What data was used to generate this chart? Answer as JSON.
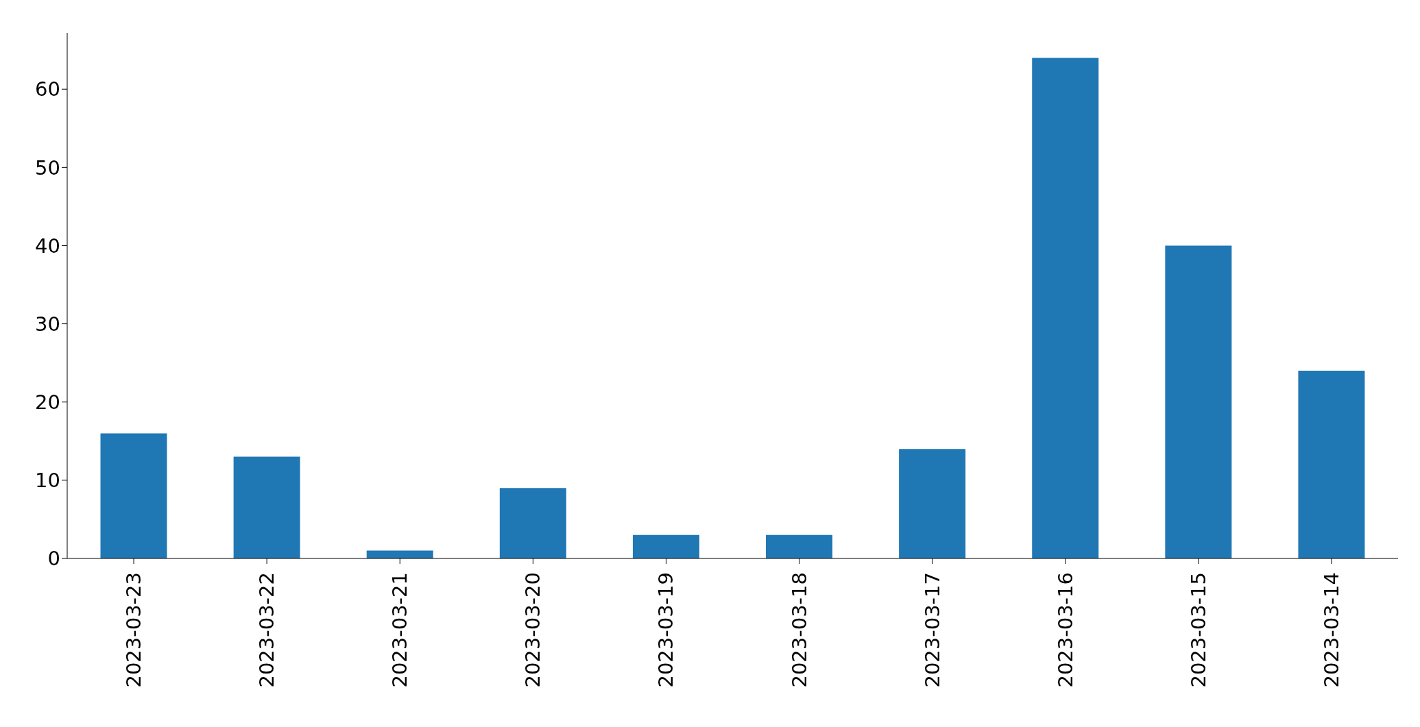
{
  "chart_data": {
    "type": "bar",
    "categories": [
      "2023-03-23",
      "2023-03-22",
      "2023-03-21",
      "2023-03-20",
      "2023-03-19",
      "2023-03-18",
      "2023-03-17",
      "2023-03-16",
      "2023-03-15",
      "2023-03-14"
    ],
    "values": [
      16,
      13,
      1,
      9,
      3,
      3,
      14,
      64,
      40,
      24
    ],
    "color": "#1f77b4",
    "ylim": [
      0,
      67.2
    ],
    "yticks": [
      0,
      10,
      20,
      30,
      40,
      50,
      60
    ],
    "grid": false,
    "legend": false
  }
}
